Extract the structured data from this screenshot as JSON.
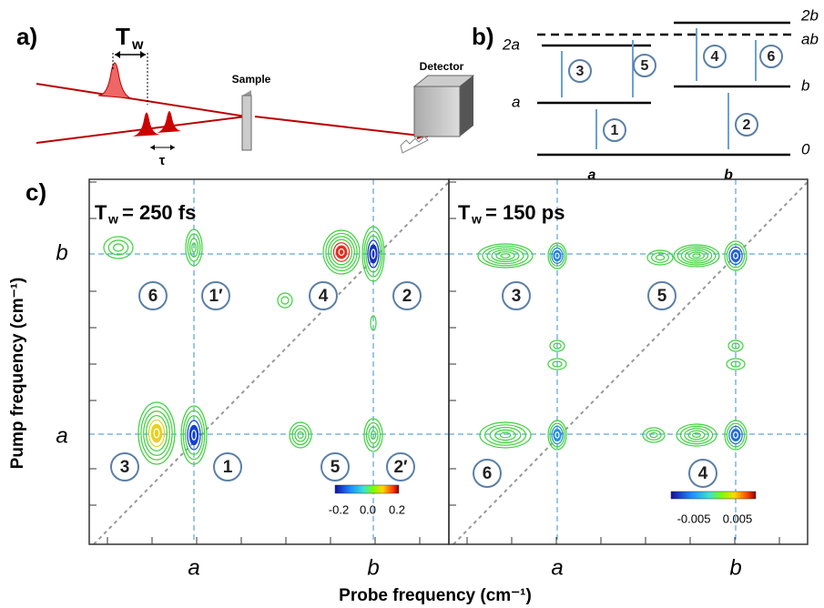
{
  "panel_a": {
    "label": "a)",
    "delay_symbol": "T",
    "delay_subscript": "w",
    "sample": "Sample",
    "detector": "Detector",
    "tau": "τ"
  },
  "panel_b": {
    "label": "b)",
    "levels": [
      "2b",
      "ab",
      "2a",
      "a",
      "b",
      "0"
    ],
    "transitions": [
      "1",
      "2",
      "3",
      "4",
      "5",
      "6"
    ],
    "states": [
      "a",
      "b"
    ]
  },
  "panel_c": {
    "label": "c)",
    "left": {
      "symbol": "T",
      "subscript": "w",
      "delay": "= 250 fs",
      "peaks": [
        "6",
        "1′",
        "4",
        "2",
        "3",
        "1",
        "5",
        "2′"
      ],
      "colorbar_ticks": [
        "-0.2",
        "0.0",
        "0.2"
      ],
      "x_ticks": [
        "a",
        "b"
      ]
    },
    "right": {
      "symbol": "T",
      "subscript": "w",
      "delay": "= 150 ps",
      "peaks": [
        "3",
        "5",
        "6",
        "4"
      ],
      "colorbar_ticks": [
        "-0.005",
        "0.005"
      ],
      "x_ticks": [
        "a",
        "b"
      ]
    },
    "y_ticks": [
      "b",
      "a"
    ],
    "y_title": "Pump frequency (cm⁻¹)",
    "x_title": "Probe frequency (cm⁻¹)"
  }
}
